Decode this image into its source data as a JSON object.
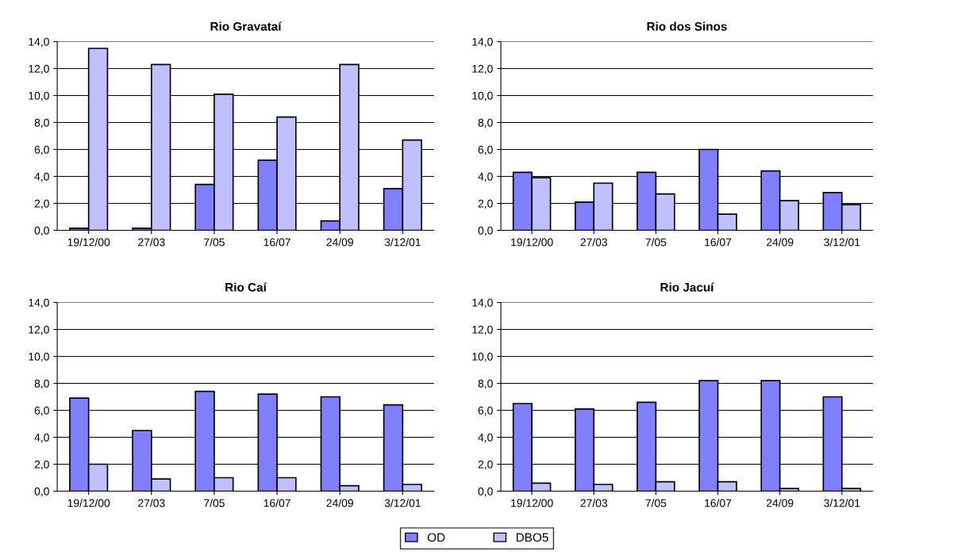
{
  "chart_data": [
    {
      "type": "bar",
      "title": "Rio Gravataí",
      "categories": [
        "19/12/00",
        "27/03",
        "7/05",
        "16/07",
        "24/09",
        "3/12/01"
      ],
      "series": [
        {
          "name": "OD",
          "color": "#8080ff",
          "values": [
            0.15,
            0.15,
            3.4,
            5.2,
            0.7,
            3.1
          ]
        },
        {
          "name": "DBO5",
          "color": "#c0c0ff",
          "values": [
            13.5,
            12.3,
            10.1,
            8.4,
            12.3,
            6.7
          ]
        }
      ],
      "ylim": [
        0,
        14
      ],
      "yticks": [
        {
          "value": 0,
          "label": "0,0"
        },
        {
          "value": 2,
          "label": "2,0"
        },
        {
          "value": 4,
          "label": "4,0"
        },
        {
          "value": 6,
          "label": "6,0"
        },
        {
          "value": 8,
          "label": "8,0"
        },
        {
          "value": 10,
          "label": "10,0"
        },
        {
          "value": 12,
          "label": "12,0"
        },
        {
          "value": 14,
          "label": "14,0"
        }
      ],
      "grid": "y",
      "legend": "bottom"
    },
    {
      "type": "bar",
      "title": "Rio dos Sinos",
      "categories": [
        "19/12/00",
        "27/03",
        "7/05",
        "16/07",
        "24/09",
        "3/12/01"
      ],
      "series": [
        {
          "name": "OD",
          "color": "#8080ff",
          "values": [
            4.3,
            2.1,
            4.3,
            6.0,
            4.4,
            2.8
          ]
        },
        {
          "name": "DBO5",
          "color": "#c0c0ff",
          "values": [
            3.9,
            3.5,
            2.7,
            1.2,
            2.2,
            1.9
          ]
        }
      ],
      "ylim": [
        0,
        14
      ],
      "yticks": [
        {
          "value": 0,
          "label": "0,0"
        },
        {
          "value": 2,
          "label": "2,0"
        },
        {
          "value": 4,
          "label": "4,0"
        },
        {
          "value": 6,
          "label": "6,0"
        },
        {
          "value": 8,
          "label": "8,0"
        },
        {
          "value": 10,
          "label": "10,0"
        },
        {
          "value": 12,
          "label": "12,0"
        },
        {
          "value": 14,
          "label": "14,0"
        }
      ],
      "grid": "y",
      "legend": "bottom"
    },
    {
      "type": "bar",
      "title": "Rio Caí",
      "categories": [
        "19/12/00",
        "27/03",
        "7/05",
        "16/07",
        "24/09",
        "3/12/01"
      ],
      "series": [
        {
          "name": "OD",
          "color": "#8080ff",
          "values": [
            6.9,
            4.5,
            7.4,
            7.2,
            7.0,
            6.4
          ]
        },
        {
          "name": "DBO5",
          "color": "#c0c0ff",
          "values": [
            2.0,
            0.9,
            1.0,
            1.0,
            0.4,
            0.5
          ]
        }
      ],
      "ylim": [
        0,
        14
      ],
      "yticks": [
        {
          "value": 0,
          "label": "0,0"
        },
        {
          "value": 2,
          "label": "2,0"
        },
        {
          "value": 4,
          "label": "4,0"
        },
        {
          "value": 6,
          "label": "6,0"
        },
        {
          "value": 8,
          "label": "8,0"
        },
        {
          "value": 10,
          "label": "10,0"
        },
        {
          "value": 12,
          "label": "12,0"
        },
        {
          "value": 14,
          "label": "14,0"
        }
      ],
      "grid": "y",
      "legend": "bottom"
    },
    {
      "type": "bar",
      "title": "Rio Jacuí",
      "categories": [
        "19/12/00",
        "27/03",
        "7/05",
        "16/07",
        "24/09",
        "3/12/01"
      ],
      "series": [
        {
          "name": "OD",
          "color": "#8080ff",
          "values": [
            6.5,
            6.1,
            6.6,
            8.2,
            8.2,
            7.0
          ]
        },
        {
          "name": "DBO5",
          "color": "#c0c0ff",
          "values": [
            0.6,
            0.5,
            0.7,
            0.7,
            0.2,
            0.2
          ]
        }
      ],
      "ylim": [
        0,
        14
      ],
      "yticks": [
        {
          "value": 0,
          "label": "0,0"
        },
        {
          "value": 2,
          "label": "2,0"
        },
        {
          "value": 4,
          "label": "4,0"
        },
        {
          "value": 6,
          "label": "6,0"
        },
        {
          "value": 8,
          "label": "8,0"
        },
        {
          "value": 10,
          "label": "10,0"
        },
        {
          "value": 12,
          "label": "12,0"
        },
        {
          "value": 14,
          "label": "14,0"
        }
      ],
      "grid": "y",
      "legend": "bottom"
    }
  ]
}
